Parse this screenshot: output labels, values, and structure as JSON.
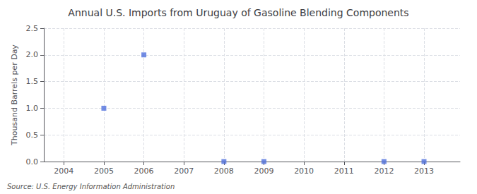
{
  "chart_data": {
    "type": "scatter",
    "title": "Annual U.S. Imports from Uruguay of Gasoline Blending Components",
    "ylabel": "Thousand Barrels per Day",
    "source": "Source: U.S. Energy Information Administration",
    "x": [
      2005,
      2006,
      2008,
      2009,
      2012,
      2013
    ],
    "values": [
      1.0,
      2.0,
      0.0,
      0.0,
      0.0,
      0.0
    ],
    "xlim": [
      2003.5,
      2013.9
    ],
    "xticks": [
      2004,
      2005,
      2006,
      2007,
      2008,
      2009,
      2010,
      2011,
      2012,
      2013
    ],
    "ylim": [
      0.0,
      2.5
    ],
    "yticks": [
      {
        "value": 0.0,
        "label": "0.0"
      },
      {
        "value": 0.5,
        "label": "0.5"
      },
      {
        "value": 1.0,
        "label": "1.0"
      },
      {
        "value": 1.5,
        "label": "1.5"
      },
      {
        "value": 2.0,
        "label": "2.0"
      },
      {
        "value": 2.5,
        "label": "2.5"
      }
    ],
    "grid": true,
    "marker": "square"
  }
}
